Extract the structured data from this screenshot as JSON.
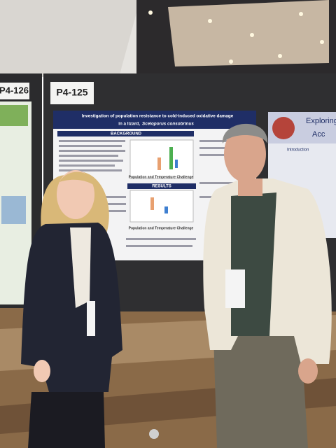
{
  "signs": [
    "P4-126",
    "P4-125"
  ],
  "poster": {
    "title_line1": "Investigation of population resistance to cold-induced oxidative damage",
    "title_line2": "in a lizard,",
    "species": "Sceloporus consobrinus",
    "sections": [
      "BACKGROUND",
      "RESULTS"
    ],
    "axis_label": "Population and Temperature Challenge"
  },
  "right_poster": {
    "title": "Exploring",
    "subtitle": "Acc",
    "section": "Introduction"
  }
}
